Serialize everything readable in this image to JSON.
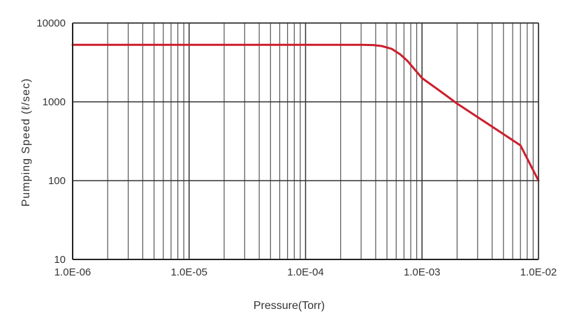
{
  "chart_data": {
    "type": "line",
    "title": "",
    "xlabel": "Pressure(Torr)",
    "ylabel": "Pumping Speed (ℓ/sec)",
    "x_scale": "log",
    "y_scale": "log",
    "xlim": [
      1e-06,
      0.01
    ],
    "ylim": [
      10,
      10000
    ],
    "x_ticks": [
      1e-06,
      1e-05,
      0.0001,
      0.001,
      0.01
    ],
    "x_tick_labels": [
      "1.0E-06",
      "1.0E-05",
      "1.0E-04",
      "1.0E-03",
      "1.0E-02"
    ],
    "y_ticks": [
      10,
      100,
      1000,
      10000
    ],
    "y_tick_labels": [
      "10",
      "100",
      "1000",
      "10000"
    ],
    "grid": true,
    "legend": "none",
    "series": [
      {
        "color": "#cc1f2d",
        "x": [
          1e-06,
          0.0003,
          0.00038,
          0.00045,
          0.00055,
          0.00065,
          0.00075,
          0.001,
          0.0015,
          0.002,
          0.003,
          0.005,
          0.007,
          0.01
        ],
        "y": [
          5300,
          5300,
          5250,
          5100,
          4700,
          4000,
          3300,
          2000,
          1300,
          950,
          640,
          390,
          280,
          100
        ]
      }
    ]
  }
}
